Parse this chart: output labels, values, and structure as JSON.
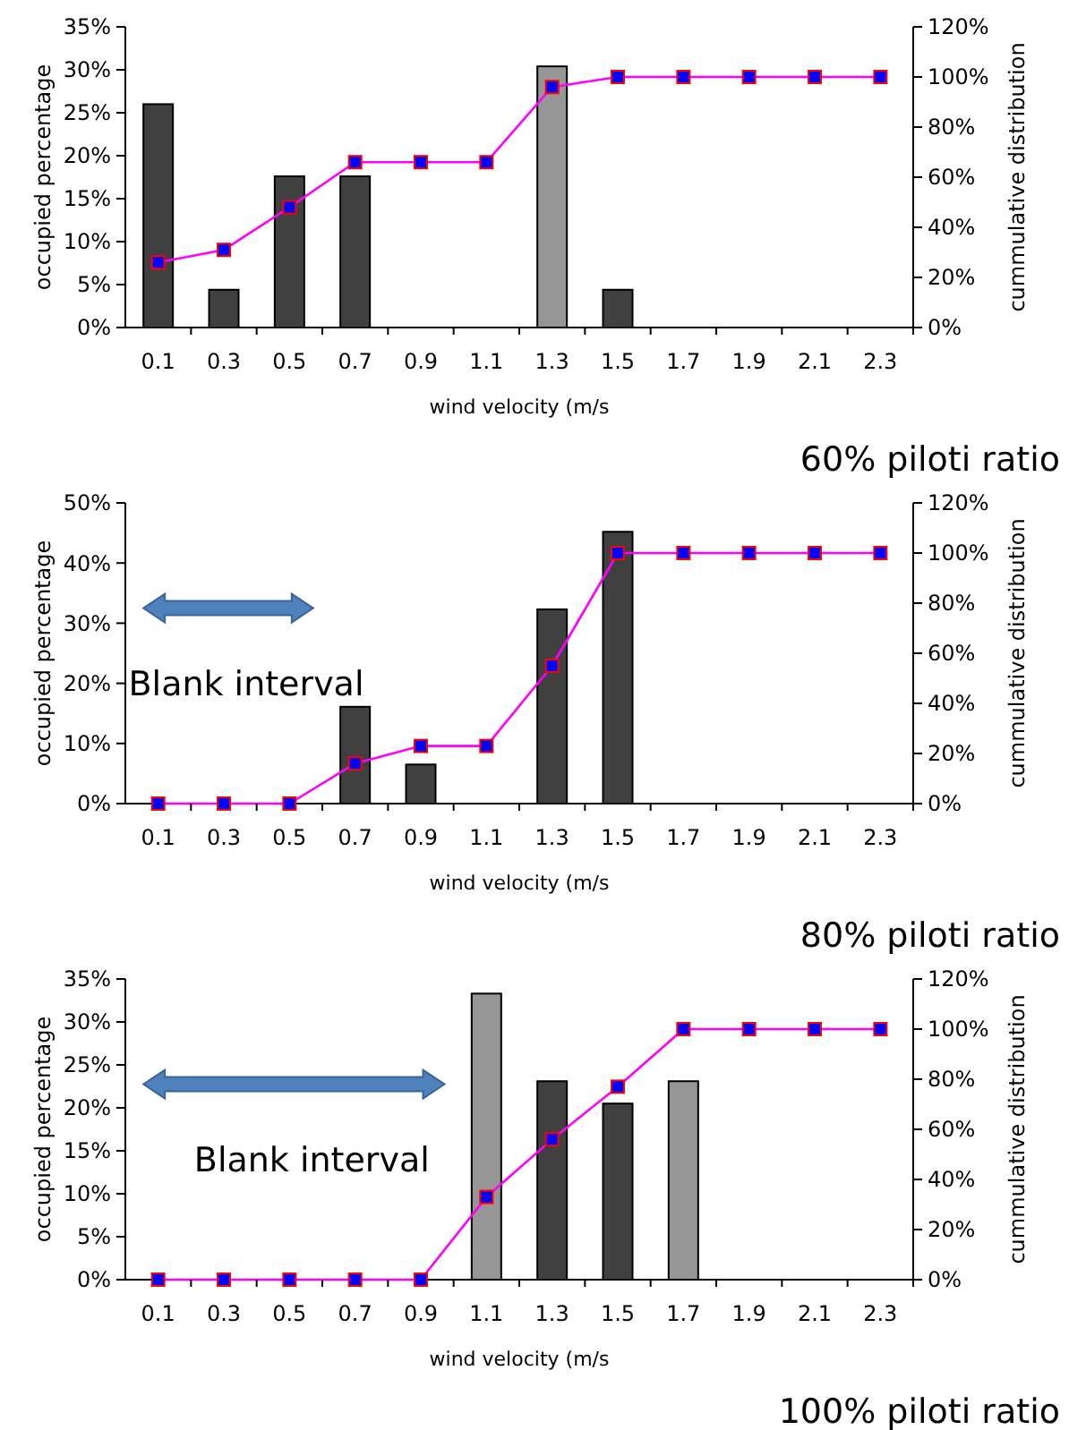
{
  "chart_data": [
    {
      "type": "bar",
      "title": "60% piloti ratio",
      "xlabel": "wind velocity (m/s",
      "ylabel": "occupied percentage",
      "y2label": "cummulative distribution",
      "categories": [
        "0.1",
        "0.3",
        "0.5",
        "0.7",
        "0.9",
        "1.1",
        "1.3",
        "1.5",
        "1.7",
        "1.9",
        "2.1",
        "2.3"
      ],
      "series": [
        {
          "colors": [
            "#404040",
            "#404040",
            "#404040",
            "#404040",
            null,
            null,
            "#969696",
            "#404040",
            null,
            null,
            null,
            null
          ],
          "values": [
            26,
            4.4,
            17.6,
            17.6,
            null,
            null,
            30.4,
            4.4,
            null,
            null,
            null,
            null
          ]
        },
        {
          "type": "line",
          "axis": "y2",
          "color": "#ff00ff",
          "values": [
            26,
            31,
            48,
            66,
            66,
            66,
            96,
            100,
            100,
            100,
            100,
            100
          ]
        }
      ],
      "ylim": [
        0,
        35
      ],
      "yticks": [
        {
          "value": 0,
          "label": "0%"
        },
        {
          "value": 5,
          "label": "5%"
        },
        {
          "value": 10,
          "label": "10%"
        },
        {
          "value": 15,
          "label": "15%"
        },
        {
          "value": 20,
          "label": "20%"
        },
        {
          "value": 25,
          "label": "25%"
        },
        {
          "value": 30,
          "label": "30%"
        },
        {
          "value": 35,
          "label": "35%"
        }
      ],
      "y2lim": [
        0,
        120
      ],
      "y2ticks": [
        {
          "value": 0,
          "label": "0%"
        },
        {
          "value": 20,
          "label": "20%"
        },
        {
          "value": 40,
          "label": "40%"
        },
        {
          "value": 60,
          "label": "60%"
        },
        {
          "value": 80,
          "label": "80%"
        },
        {
          "value": 100,
          "label": "100%"
        },
        {
          "value": 120,
          "label": "120%"
        }
      ],
      "marker": "square",
      "grid": false
    },
    {
      "type": "bar",
      "title": "80% piloti ratio",
      "xlabel": "wind velocity (m/s",
      "ylabel": "occupied percentage",
      "y2label": "cummulative distribution",
      "categories": [
        "0.1",
        "0.3",
        "0.5",
        "0.7",
        "0.9",
        "1.1",
        "1.3",
        "1.5",
        "1.7",
        "1.9",
        "2.1",
        "2.3"
      ],
      "annotations": [
        "Blank interval"
      ],
      "series": [
        {
          "colors": [
            null,
            null,
            null,
            "#404040",
            "#404040",
            null,
            "#404040",
            "#404040",
            null,
            null,
            null,
            null
          ],
          "values": [
            null,
            null,
            null,
            16.1,
            6.5,
            null,
            32.3,
            45.2,
            null,
            null,
            null,
            null
          ]
        },
        {
          "type": "line",
          "axis": "y2",
          "color": "#ff00ff",
          "values": [
            0,
            0,
            0,
            16,
            23,
            23,
            55,
            100,
            100,
            100,
            100,
            100
          ]
        }
      ],
      "ylim": [
        0,
        50
      ],
      "yticks": [
        {
          "value": 0,
          "label": "0%"
        },
        {
          "value": 10,
          "label": "10%"
        },
        {
          "value": 20,
          "label": "20%"
        },
        {
          "value": 30,
          "label": "30%"
        },
        {
          "value": 40,
          "label": "40%"
        },
        {
          "value": 50,
          "label": "50%"
        }
      ],
      "y2lim": [
        0,
        120
      ],
      "y2ticks": [
        {
          "value": 0,
          "label": "0%"
        },
        {
          "value": 20,
          "label": "20%"
        },
        {
          "value": 40,
          "label": "40%"
        },
        {
          "value": 60,
          "label": "60%"
        },
        {
          "value": 80,
          "label": "80%"
        },
        {
          "value": 100,
          "label": "100%"
        },
        {
          "value": 120,
          "label": "120%"
        }
      ],
      "marker": "square",
      "grid": false
    },
    {
      "type": "bar",
      "title": "100% piloti ratio",
      "xlabel": "wind velocity (m/s",
      "ylabel": "occupied percentage",
      "y2label": "cummulative distribution",
      "categories": [
        "0.1",
        "0.3",
        "0.5",
        "0.7",
        "0.9",
        "1.1",
        "1.3",
        "1.5",
        "1.7",
        "1.9",
        "2.1",
        "2.3"
      ],
      "annotations": [
        "Blank interval"
      ],
      "series": [
        {
          "colors": [
            null,
            null,
            null,
            null,
            null,
            "#969696",
            "#404040",
            "#404040",
            "#969696",
            null,
            null,
            null
          ],
          "values": [
            null,
            null,
            null,
            null,
            null,
            33.3,
            23.1,
            20.5,
            23.1,
            null,
            null,
            null
          ]
        },
        {
          "type": "line",
          "axis": "y2",
          "color": "#ff00ff",
          "values": [
            0,
            0,
            0,
            0,
            0,
            33,
            56,
            77,
            100,
            100,
            100,
            100
          ]
        }
      ],
      "ylim": [
        0,
        35
      ],
      "yticks": [
        {
          "value": 0,
          "label": "0%"
        },
        {
          "value": 5,
          "label": "5%"
        },
        {
          "value": 10,
          "label": "10%"
        },
        {
          "value": 15,
          "label": "15%"
        },
        {
          "value": 20,
          "label": "20%"
        },
        {
          "value": 25,
          "label": "25%"
        },
        {
          "value": 30,
          "label": "30%"
        },
        {
          "value": 35,
          "label": "35%"
        }
      ],
      "y2lim": [
        0,
        120
      ],
      "y2ticks": [
        {
          "value": 0,
          "label": "0%"
        },
        {
          "value": 20,
          "label": "20%"
        },
        {
          "value": 40,
          "label": "40%"
        },
        {
          "value": 60,
          "label": "60%"
        },
        {
          "value": 80,
          "label": "80%"
        },
        {
          "value": 100,
          "label": "100%"
        },
        {
          "value": 120,
          "label": "120%"
        }
      ],
      "marker": "square",
      "grid": false
    }
  ]
}
